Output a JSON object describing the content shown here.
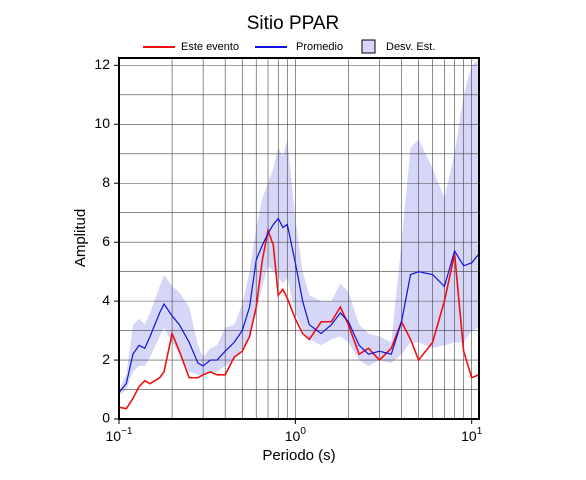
{
  "chart_data": {
    "type": "line",
    "title": "Sitio PPAR",
    "xlabel": "Periodo (s)",
    "ylabel": "Amplitud",
    "xscale": "log",
    "grid": true,
    "xlim": [
      0.1,
      11
    ],
    "ylim": [
      0,
      12.25
    ],
    "xticks": [
      {
        "value": 0.1,
        "label": "10",
        "power": "−1"
      },
      {
        "value": 1,
        "label": "10",
        "power": "0"
      },
      {
        "value": 10,
        "label": "10",
        "power": "1"
      }
    ],
    "xminor": [
      0.2,
      0.3,
      0.4,
      0.5,
      0.6,
      0.7,
      0.8,
      0.9,
      2,
      3,
      4,
      5,
      6,
      7,
      8,
      9
    ],
    "yticks": [
      0,
      2,
      4,
      6,
      8,
      10,
      12
    ],
    "yminor": [
      1,
      3,
      5,
      7,
      9,
      11
    ],
    "x": [
      0.1,
      0.11,
      0.12,
      0.13,
      0.14,
      0.15,
      0.17,
      0.18,
      0.2,
      0.22,
      0.25,
      0.28,
      0.3,
      0.33,
      0.36,
      0.4,
      0.45,
      0.5,
      0.55,
      0.6,
      0.65,
      0.7,
      0.75,
      0.8,
      0.85,
      0.9,
      1.0,
      1.1,
      1.2,
      1.4,
      1.6,
      1.8,
      2.0,
      2.3,
      2.6,
      3.0,
      3.5,
      4.0,
      4.5,
      5.0,
      6.0,
      7.0,
      8.0,
      9.0,
      10.0,
      11.0
    ],
    "band": {
      "name": "Desv. Est.",
      "color": "#d6d6f8",
      "lower": [
        0.8,
        1.0,
        1.6,
        1.8,
        1.8,
        2.1,
        2.8,
        3.1,
        2.6,
        2.2,
        1.6,
        1.5,
        1.5,
        1.6,
        1.6,
        1.8,
        2.0,
        2.4,
        2.8,
        3.6,
        4.5,
        5.2,
        5.0,
        4.8,
        4.6,
        4.8,
        3.6,
        3.0,
        2.7,
        2.5,
        2.7,
        2.8,
        2.6,
        2.0,
        1.8,
        2.0,
        1.9,
        2.2,
        2.6,
        2.6,
        2.4,
        2.5,
        2.6,
        2.6,
        3.0,
        3.1
      ],
      "upper": [
        1.0,
        1.5,
        3.2,
        3.4,
        3.2,
        3.6,
        4.5,
        4.9,
        4.5,
        4.3,
        3.8,
        2.5,
        2.1,
        2.4,
        2.5,
        3.1,
        3.2,
        3.9,
        5.0,
        6.5,
        7.5,
        8.0,
        8.5,
        9.2,
        8.9,
        9.5,
        6.8,
        5.0,
        4.2,
        4.0,
        4.0,
        4.6,
        4.3,
        3.2,
        2.9,
        2.8,
        2.6,
        6.0,
        9.2,
        9.5,
        8.5,
        7.5,
        9.0,
        11.0,
        12.0,
        12.2
      ]
    },
    "series": [
      {
        "name": "Este evento",
        "color": "#ee1111",
        "values": [
          0.4,
          0.35,
          0.7,
          1.1,
          1.3,
          1.2,
          1.4,
          1.6,
          2.9,
          2.3,
          1.4,
          1.4,
          1.5,
          1.6,
          1.5,
          1.5,
          2.1,
          2.3,
          2.8,
          3.8,
          5.4,
          6.4,
          5.9,
          4.2,
          4.4,
          4.1,
          3.4,
          2.9,
          2.7,
          3.3,
          3.3,
          3.8,
          3.2,
          2.2,
          2.4,
          2.0,
          2.4,
          3.3,
          2.7,
          2.0,
          2.6,
          4.0,
          5.6,
          2.3,
          1.4,
          1.5
        ]
      },
      {
        "name": "Promedio",
        "color": "#1111dd",
        "values": [
          0.9,
          1.2,
          2.2,
          2.5,
          2.4,
          2.8,
          3.6,
          3.9,
          3.5,
          3.2,
          2.6,
          1.9,
          1.8,
          2.0,
          2.0,
          2.3,
          2.6,
          3.0,
          3.8,
          5.4,
          5.9,
          6.3,
          6.6,
          6.8,
          6.5,
          6.6,
          5.3,
          4.0,
          3.2,
          2.9,
          3.2,
          3.6,
          3.3,
          2.5,
          2.2,
          2.3,
          2.2,
          3.3,
          4.9,
          5.0,
          4.9,
          4.5,
          5.7,
          5.2,
          5.3,
          5.6
        ]
      }
    ]
  }
}
